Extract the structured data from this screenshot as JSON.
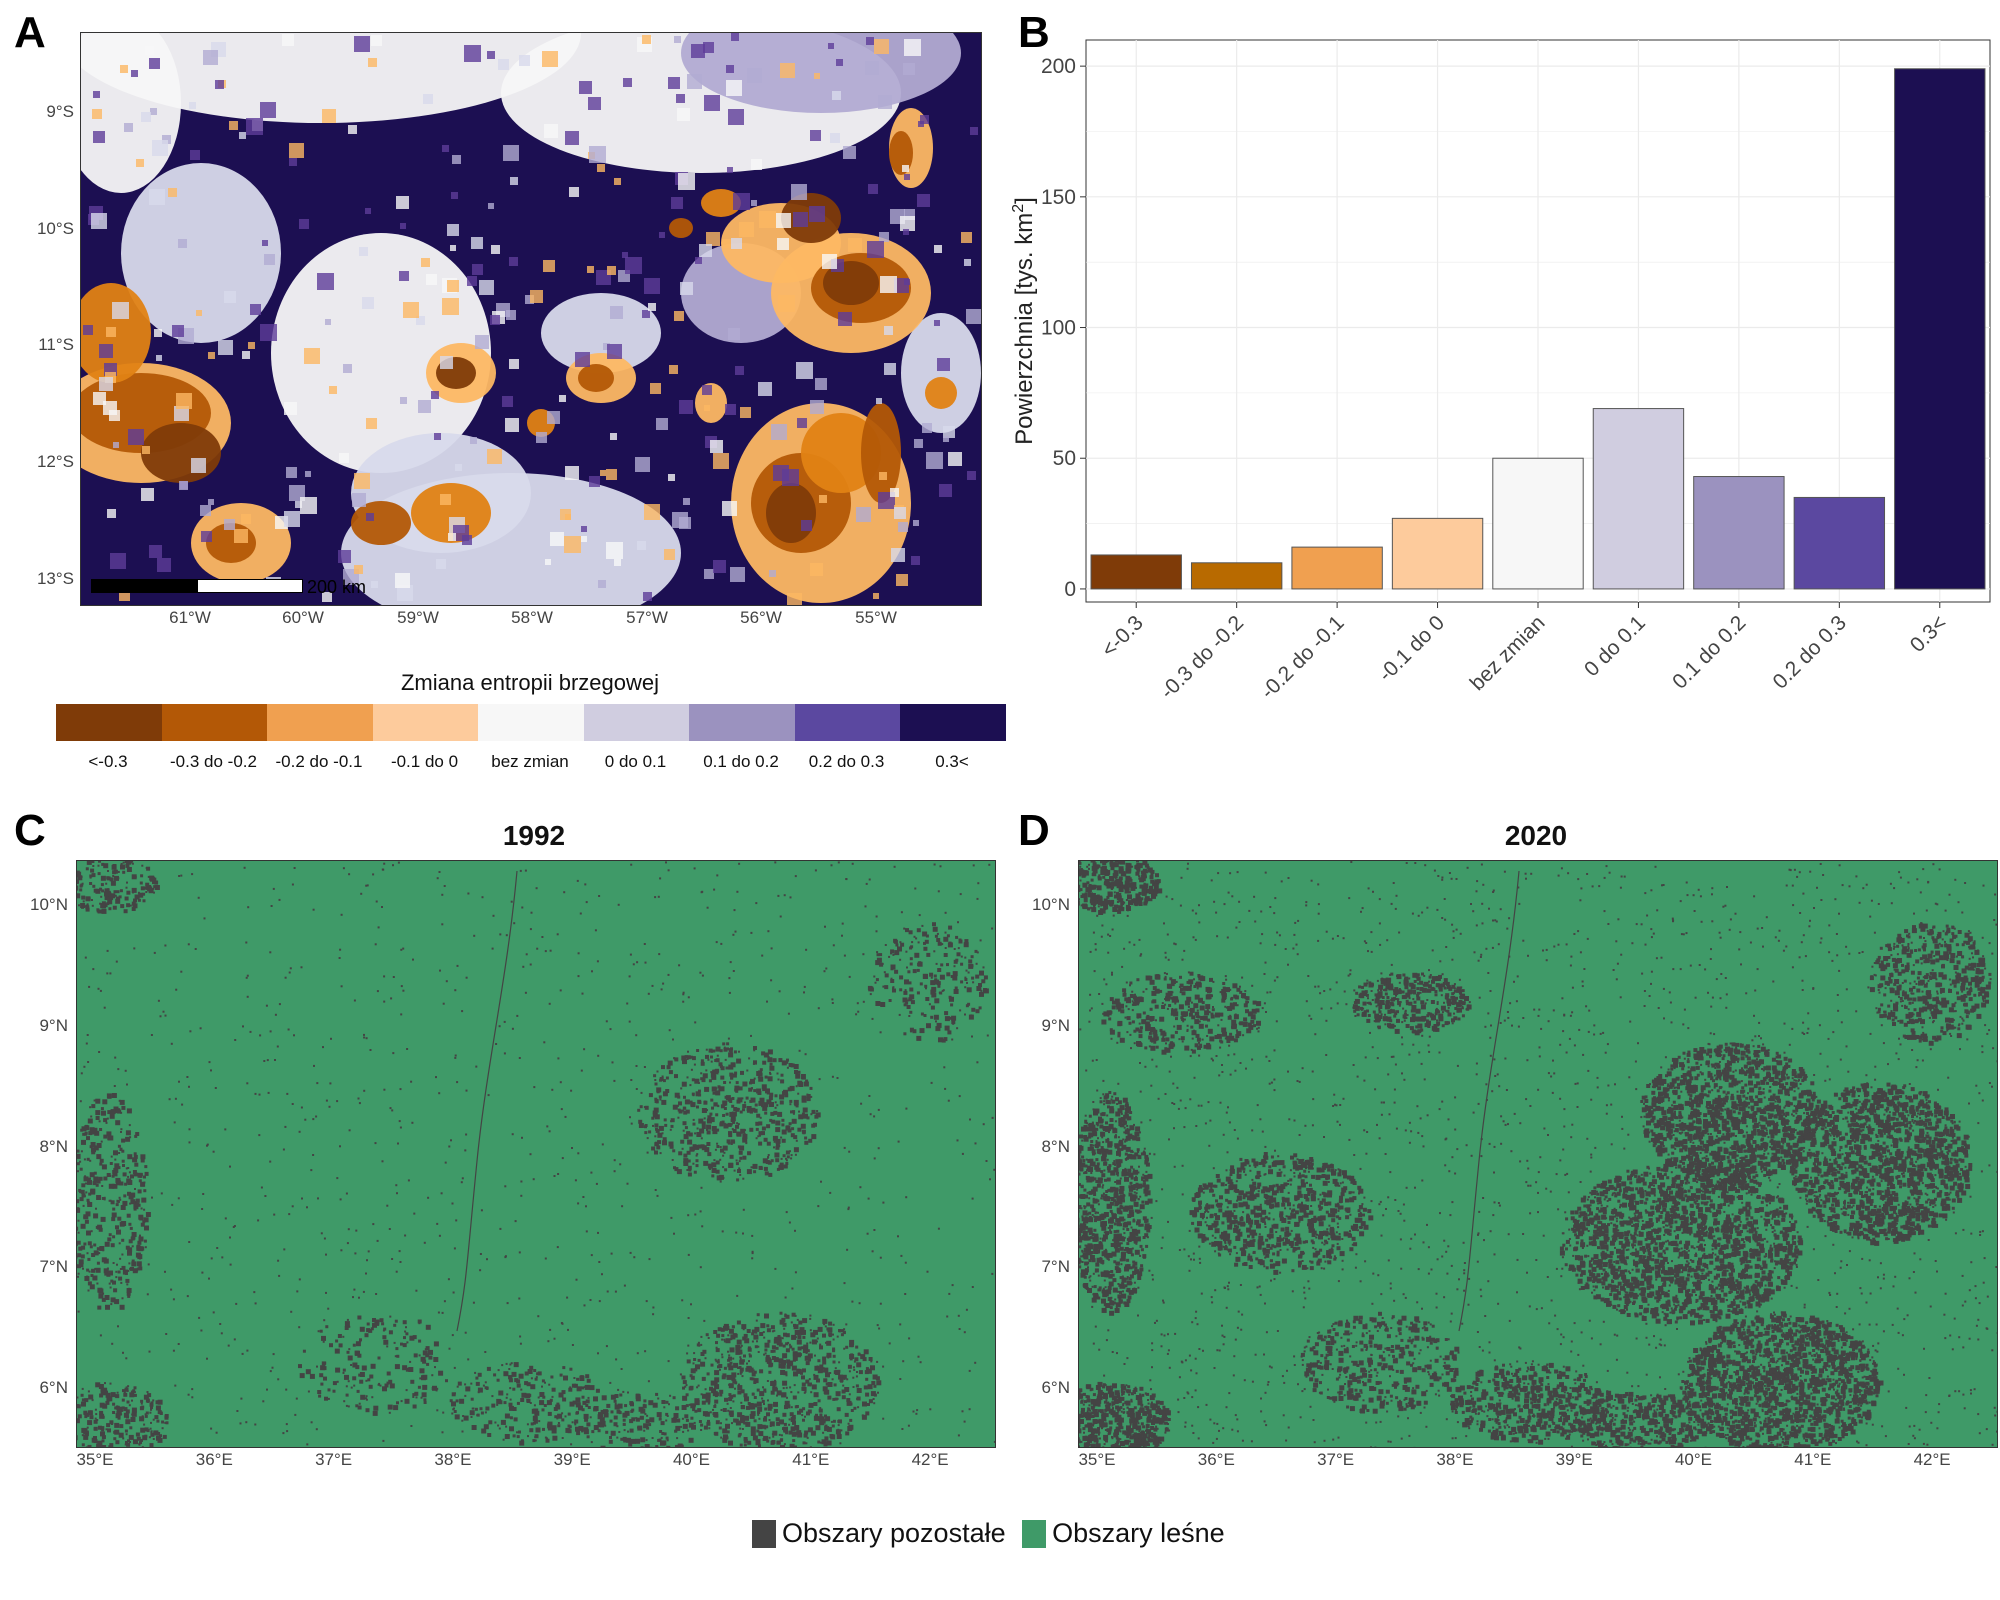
{
  "panels": {
    "a": "A",
    "b": "B",
    "c": "C",
    "d": "D"
  },
  "map_a": {
    "lat_ticks": [
      "9°S",
      "10°S",
      "11°S",
      "12°S",
      "13°S"
    ],
    "lon_ticks": [
      "61°W",
      "60°W",
      "59°W",
      "58°W",
      "57°W",
      "56°W",
      "55°W"
    ],
    "scale_label": "200 km",
    "colors": [
      "#7f3b08",
      "#b35806",
      "#e08214",
      "#fdb863",
      "#f7f7f7",
      "#d8daeb",
      "#b2abd2",
      "#5e3c99",
      "#1c0f52"
    ]
  },
  "legend_a": {
    "title": "Zmiana entropii brzegowej",
    "items": [
      {
        "label": "<-0.3",
        "color": "#7f3b08"
      },
      {
        "label": "-0.3 do -0.2",
        "color": "#b35806"
      },
      {
        "label": "-0.2 do -0.1",
        "color": "#f0a050"
      },
      {
        "label": "-0.1 do 0",
        "color": "#fdcb9c"
      },
      {
        "label": "bez zmian",
        "color": "#f7f7f7"
      },
      {
        "label": "0 do 0.1",
        "color": "#d0cde0"
      },
      {
        "label": "0.1 do 0.2",
        "color": "#9b92bf"
      },
      {
        "label": "0.2 do 0.3",
        "color": "#5b48a0"
      },
      {
        "label": "0.3<",
        "color": "#1c0f52"
      }
    ]
  },
  "chart_data": {
    "type": "bar",
    "categories": [
      "<-0.3",
      "-0.3 do -0.2",
      "-0.2 do -0.1",
      "-0.1 do 0",
      "bez zmian",
      "0 do 0.1",
      "0.1 do 0.2",
      "0.2 do 0.3",
      "0.3<"
    ],
    "values": [
      13,
      10,
      16,
      27,
      50,
      69,
      43,
      35,
      199
    ],
    "colors": [
      "#7f3b08",
      "#b86a00",
      "#f0a050",
      "#fdcb9c",
      "#f7f7f7",
      "#d0cde0",
      "#9b92bf",
      "#5b48a0",
      "#1c0f52"
    ],
    "ylabel": "Powierzchnia [tys. km",
    "ylabel_sup": "2",
    "ylabel_end": "]",
    "ylim": [
      0,
      210
    ],
    "yticks": [
      0,
      50,
      100,
      150,
      200
    ],
    "grid": true
  },
  "map_c": {
    "title": "1992",
    "lat_ticks": [
      "10°N",
      "9°N",
      "8°N",
      "7°N",
      "6°N"
    ],
    "lon_ticks": [
      "35°E",
      "36°E",
      "37°E",
      "38°E",
      "39°E",
      "40°E",
      "41°E",
      "42°E"
    ]
  },
  "map_d": {
    "title": "2020",
    "lat_ticks": [
      "10°N",
      "9°N",
      "8°N",
      "7°N",
      "6°N"
    ],
    "lon_ticks": [
      "35°E",
      "36°E",
      "37°E",
      "38°E",
      "39°E",
      "40°E",
      "41°E",
      "42°E"
    ]
  },
  "legend_cd": {
    "items": [
      {
        "label": "Obszary pozostałe",
        "color": "#444444"
      },
      {
        "label": "Obszary leśne",
        "color": "#3f9a68"
      }
    ]
  }
}
